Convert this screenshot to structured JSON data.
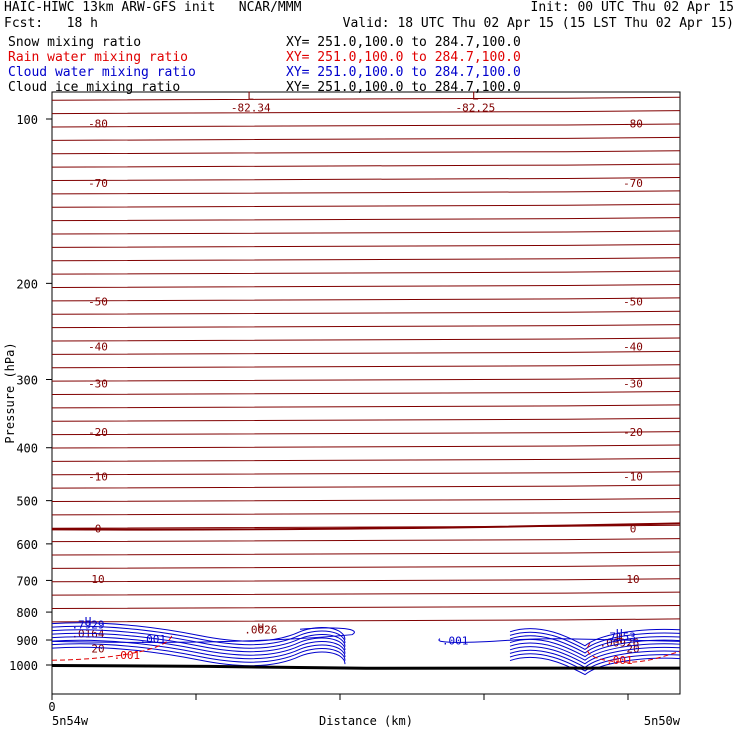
{
  "header": {
    "line1_left": "HAIC-HIWC 13km ARW-GFS init   NCAR/MMM",
    "line1_right": "Init: 00 UTC Thu 02 Apr 15",
    "line2_left": "Fcst:   18 h",
    "line2_right": "Valid: 18 UTC Thu 02 Apr 15 (15 LST Thu 02 Apr 15)",
    "fields": [
      {
        "name": "Snow mixing ratio",
        "xy": "XY= 251.0,100.0 to 284.7,100.0"
      },
      {
        "name": "Rain water mixing ratio",
        "xy": "XY= 251.0,100.0 to 284.7,100.0"
      },
      {
        "name": "Cloud water mixing ratio",
        "xy": "XY= 251.0,100.0 to 284.7,100.0"
      },
      {
        "name": "Cloud ice mixing ratio",
        "xy": "XY= 251.0,100.0 to 284.7,100.0"
      }
    ]
  },
  "colors": {
    "black": "#000000",
    "temperature": "#800000",
    "rain": "#e00000",
    "cloud_water": "#0000cc",
    "grid": "#000000"
  },
  "chart_data": {
    "type": "line",
    "title": "",
    "ylabel": "Pressure (hPa)",
    "xlabel": "Distance (km)",
    "y_scale": "log",
    "ylim": [
      1050,
      85
    ],
    "yticks": [
      100,
      200,
      300,
      400,
      500,
      600,
      700,
      800,
      900,
      1000
    ],
    "xticks": [
      0,
      100,
      200,
      300,
      400
    ],
    "xlim": [
      0,
      436
    ],
    "x_tick_labels_shown": [
      "0"
    ],
    "x_endpoint_labels": {
      "left": "5n54w",
      "right": "5n50w"
    },
    "temperature_labels": [
      {
        "label": "-80",
        "p": 102
      },
      {
        "label": "-70",
        "p": 131
      },
      {
        "label": "-50",
        "p": 216
      },
      {
        "label": "-40",
        "p": 261
      },
      {
        "label": "-30",
        "p": 305
      },
      {
        "label": "-20",
        "p": 374
      },
      {
        "label": "-10",
        "p": 452
      },
      {
        "label": "0",
        "p": 562
      },
      {
        "label": "10",
        "p": 696
      },
      {
        "label": "20",
        "p": 932
      }
    ],
    "extrema": [
      {
        "kind": "L",
        "value": "-82.34",
        "x": 138,
        "p": 89
      },
      {
        "kind": "L",
        "value": "-82.25",
        "x": 294,
        "p": 89
      },
      {
        "kind": "H",
        "value": ".7929",
        "x": 25,
        "p": 858
      },
      {
        "kind": "H",
        "value": ".0164",
        "x": 25,
        "p": 890
      },
      {
        "kind": "H",
        "value": ".0026",
        "x": 145,
        "p": 875
      },
      {
        "kind": "H",
        "value": ".7153",
        "x": 394,
        "p": 901
      },
      {
        "kind": "H",
        "value": ".00926",
        "x": 394,
        "p": 925
      }
    ],
    "cloud_water_label": ".001",
    "rain_label": ".001",
    "terrain_pressure": [
      1002,
      1006,
      1014,
      1013,
      1013
    ]
  }
}
